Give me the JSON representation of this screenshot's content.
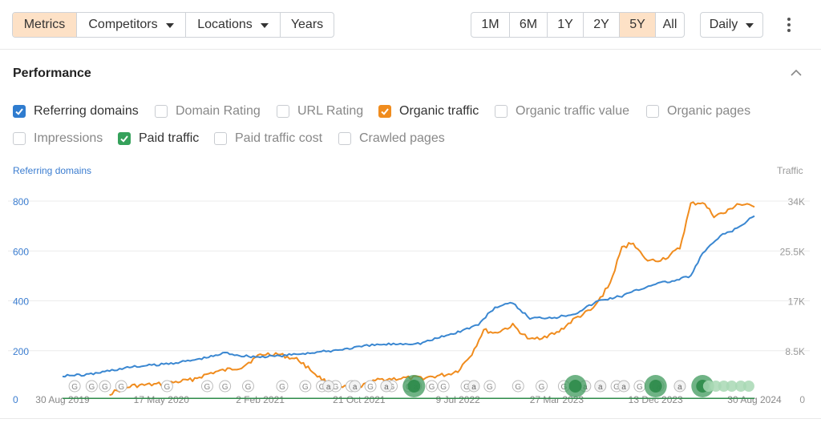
{
  "toolbar": {
    "left_tabs": [
      {
        "label": "Metrics",
        "active": true,
        "dropdown": false
      },
      {
        "label": "Competitors",
        "active": false,
        "dropdown": true
      },
      {
        "label": "Locations",
        "active": false,
        "dropdown": true
      },
      {
        "label": "Years",
        "active": false,
        "dropdown": false
      }
    ],
    "ranges": [
      {
        "label": "1M",
        "active": false
      },
      {
        "label": "6M",
        "active": false
      },
      {
        "label": "1Y",
        "active": false
      },
      {
        "label": "2Y",
        "active": false
      },
      {
        "label": "5Y",
        "active": true
      },
      {
        "label": "All",
        "active": false
      }
    ],
    "interval": "Daily"
  },
  "section": {
    "title": "Performance"
  },
  "metrics": [
    {
      "label": "Referring domains",
      "checked": true,
      "color": "#2f7ccf"
    },
    {
      "label": "Domain Rating",
      "checked": false
    },
    {
      "label": "URL Rating",
      "checked": false
    },
    {
      "label": "Organic traffic",
      "checked": true,
      "color": "#f08c1e"
    },
    {
      "label": "Organic traffic value",
      "checked": false
    },
    {
      "label": "Organic pages",
      "checked": false
    },
    {
      "label": "Impressions",
      "checked": false
    },
    {
      "label": "Paid traffic",
      "checked": true,
      "color": "#35a15b"
    },
    {
      "label": "Paid traffic cost",
      "checked": false
    },
    {
      "label": "Crawled pages",
      "checked": false
    }
  ],
  "chart_data": {
    "type": "line",
    "left_axis_title": "Referring domains",
    "right_axis_title": "Traffic",
    "left_ticks": [
      "800",
      "600",
      "400",
      "200",
      "0"
    ],
    "right_ticks": [
      "34K",
      "25.5K",
      "17K",
      "8.5K",
      "0"
    ],
    "ylim_left": [
      0,
      800
    ],
    "ylim_right": [
      0,
      34000
    ],
    "x_tick_labels": [
      "30 Aug 2019",
      "17 May 2020",
      "2 Feb 2021",
      "21 Oct 2021",
      "9 Jul 2022",
      "27 Mar 2023",
      "13 Dec 2023",
      "30 Aug 2024"
    ],
    "grid": true,
    "series": [
      {
        "name": "Referring domains",
        "axis": "left",
        "color": "#3a87d1",
        "points": [
          [
            "2019-08-30",
            100
          ],
          [
            "2019-11-01",
            103
          ],
          [
            "2020-01-01",
            120
          ],
          [
            "2020-03-01",
            135
          ],
          [
            "2020-05-17",
            145
          ],
          [
            "2020-08-01",
            160
          ],
          [
            "2020-10-01",
            178
          ],
          [
            "2020-11-01",
            192
          ],
          [
            "2020-12-15",
            180
          ],
          [
            "2021-02-02",
            175
          ],
          [
            "2021-04-01",
            180
          ],
          [
            "2021-06-01",
            190
          ],
          [
            "2021-08-01",
            198
          ],
          [
            "2021-10-21",
            215
          ],
          [
            "2021-12-01",
            223
          ],
          [
            "2022-02-01",
            228
          ],
          [
            "2022-04-01",
            230
          ],
          [
            "2022-05-15",
            250
          ],
          [
            "2022-07-09",
            275
          ],
          [
            "2022-09-01",
            305
          ],
          [
            "2022-10-15",
            375
          ],
          [
            "2022-12-01",
            390
          ],
          [
            "2023-01-15",
            330
          ],
          [
            "2023-03-27",
            335
          ],
          [
            "2023-05-15",
            350
          ],
          [
            "2023-07-15",
            400
          ],
          [
            "2023-09-15",
            420
          ],
          [
            "2023-12-13",
            470
          ],
          [
            "2024-02-01",
            480
          ],
          [
            "2024-03-15",
            500
          ],
          [
            "2024-04-15",
            590
          ],
          [
            "2024-06-01",
            660
          ],
          [
            "2024-07-15",
            690
          ],
          [
            "2024-08-30",
            740
          ]
        ]
      },
      {
        "name": "Organic traffic",
        "axis": "right",
        "color": "#f08c1e",
        "points": [
          [
            "2020-01-01",
            1200
          ],
          [
            "2020-03-01",
            2500
          ],
          [
            "2020-05-17",
            2800
          ],
          [
            "2020-08-01",
            3500
          ],
          [
            "2020-10-01",
            4800
          ],
          [
            "2020-12-15",
            5700
          ],
          [
            "2021-02-02",
            7800
          ],
          [
            "2021-03-15",
            8000
          ],
          [
            "2021-05-15",
            6900
          ],
          [
            "2021-07-15",
            3600
          ],
          [
            "2021-09-01",
            2200
          ],
          [
            "2021-10-21",
            2300
          ],
          [
            "2021-12-15",
            3600
          ],
          [
            "2022-02-15",
            3800
          ],
          [
            "2022-04-15",
            3900
          ],
          [
            "2022-06-15",
            4500
          ],
          [
            "2022-07-09",
            5100
          ],
          [
            "2022-08-15",
            8000
          ],
          [
            "2022-09-15",
            12000
          ],
          [
            "2022-10-15",
            11500
          ],
          [
            "2022-12-01",
            12800
          ],
          [
            "2023-01-15",
            10300
          ],
          [
            "2023-03-27",
            11500
          ],
          [
            "2023-05-15",
            14000
          ],
          [
            "2023-07-01",
            15600
          ],
          [
            "2023-08-15",
            20000
          ],
          [
            "2023-09-15",
            26000
          ],
          [
            "2023-10-15",
            27000
          ],
          [
            "2023-11-15",
            24000
          ],
          [
            "2023-12-13",
            23800
          ],
          [
            "2024-01-15",
            24500
          ],
          [
            "2024-02-15",
            26000
          ],
          [
            "2024-03-15",
            33500
          ],
          [
            "2024-04-15",
            33800
          ],
          [
            "2024-05-15",
            31500
          ],
          [
            "2024-06-15",
            32000
          ],
          [
            "2024-07-15",
            33500
          ],
          [
            "2024-08-30",
            33000
          ]
        ]
      },
      {
        "name": "Paid traffic",
        "axis": "right",
        "color": "#2e8b4a",
        "points": [
          [
            "2019-08-30",
            100
          ],
          [
            "2024-08-30",
            100
          ]
        ]
      }
    ],
    "annotation_markers": {
      "google_updates": [
        "2019-10-01",
        "2019-11-15",
        "2019-12-20",
        "2020-02-01",
        "2020-06-01",
        "2020-09-15",
        "2020-11-01",
        "2021-01-01",
        "2021-04-01",
        "2021-06-01",
        "2021-07-15",
        "2021-08-20",
        "2021-10-01",
        "2021-11-20",
        "2022-01-15",
        "2022-03-01",
        "2022-05-01",
        "2022-06-01",
        "2022-08-01",
        "2022-10-01",
        "2022-12-15",
        "2023-02-15",
        "2023-04-15",
        "2023-09-01",
        "2023-11-01"
      ],
      "notes": [
        "2021-08-01",
        "2021-10-10",
        "2022-01-01",
        "2022-03-20",
        "2022-08-20",
        "2023-06-10",
        "2023-07-20",
        "2023-09-20",
        "2023-12-20",
        "2024-02-15"
      ],
      "large_events": [
        "2022-03-15",
        "2023-05-15",
        "2023-12-13",
        "2024-04-15"
      ]
    }
  }
}
